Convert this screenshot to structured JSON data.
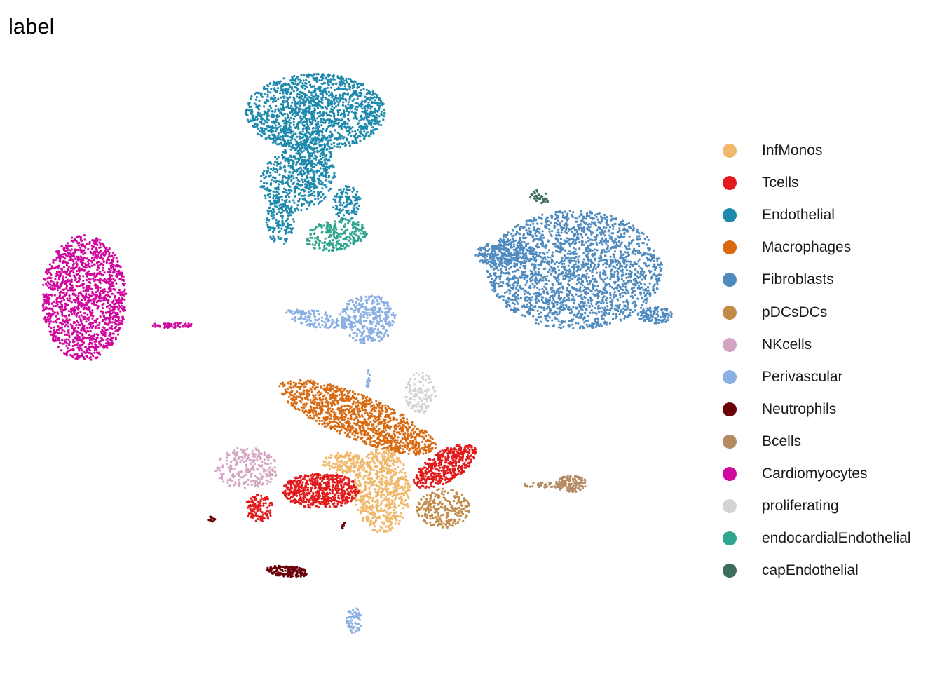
{
  "chart_data": {
    "type": "scatter",
    "title": "label",
    "xlabel": "",
    "ylabel": "",
    "grid": false,
    "axes_visible": false,
    "legend_position": "right",
    "legend_title": "",
    "series": [
      {
        "name": "InfMonos",
        "color": "#F0B86A"
      },
      {
        "name": "Tcells",
        "color": "#E31A1C"
      },
      {
        "name": "Endothelial",
        "color": "#1F8AAD"
      },
      {
        "name": "Macrophages",
        "color": "#D86A11"
      },
      {
        "name": "Fibroblasts",
        "color": "#4F8BBF"
      },
      {
        "name": "pDCsDCs",
        "color": "#C18B48"
      },
      {
        "name": "NKcells",
        "color": "#D4A5C2"
      },
      {
        "name": "Perivascular",
        "color": "#8AB0E3"
      },
      {
        "name": "Neutrophils",
        "color": "#6A0008"
      },
      {
        "name": "Bcells",
        "color": "#B58B63"
      },
      {
        "name": "Cardiomyocytes",
        "color": "#D1089E"
      },
      {
        "name": "proliferating",
        "color": "#D3D3D3"
      },
      {
        "name": "endocardialEndothelial",
        "color": "#2FA58E"
      },
      {
        "name": "capEndothelial",
        "color": "#3C6E5E"
      }
    ]
  }
}
